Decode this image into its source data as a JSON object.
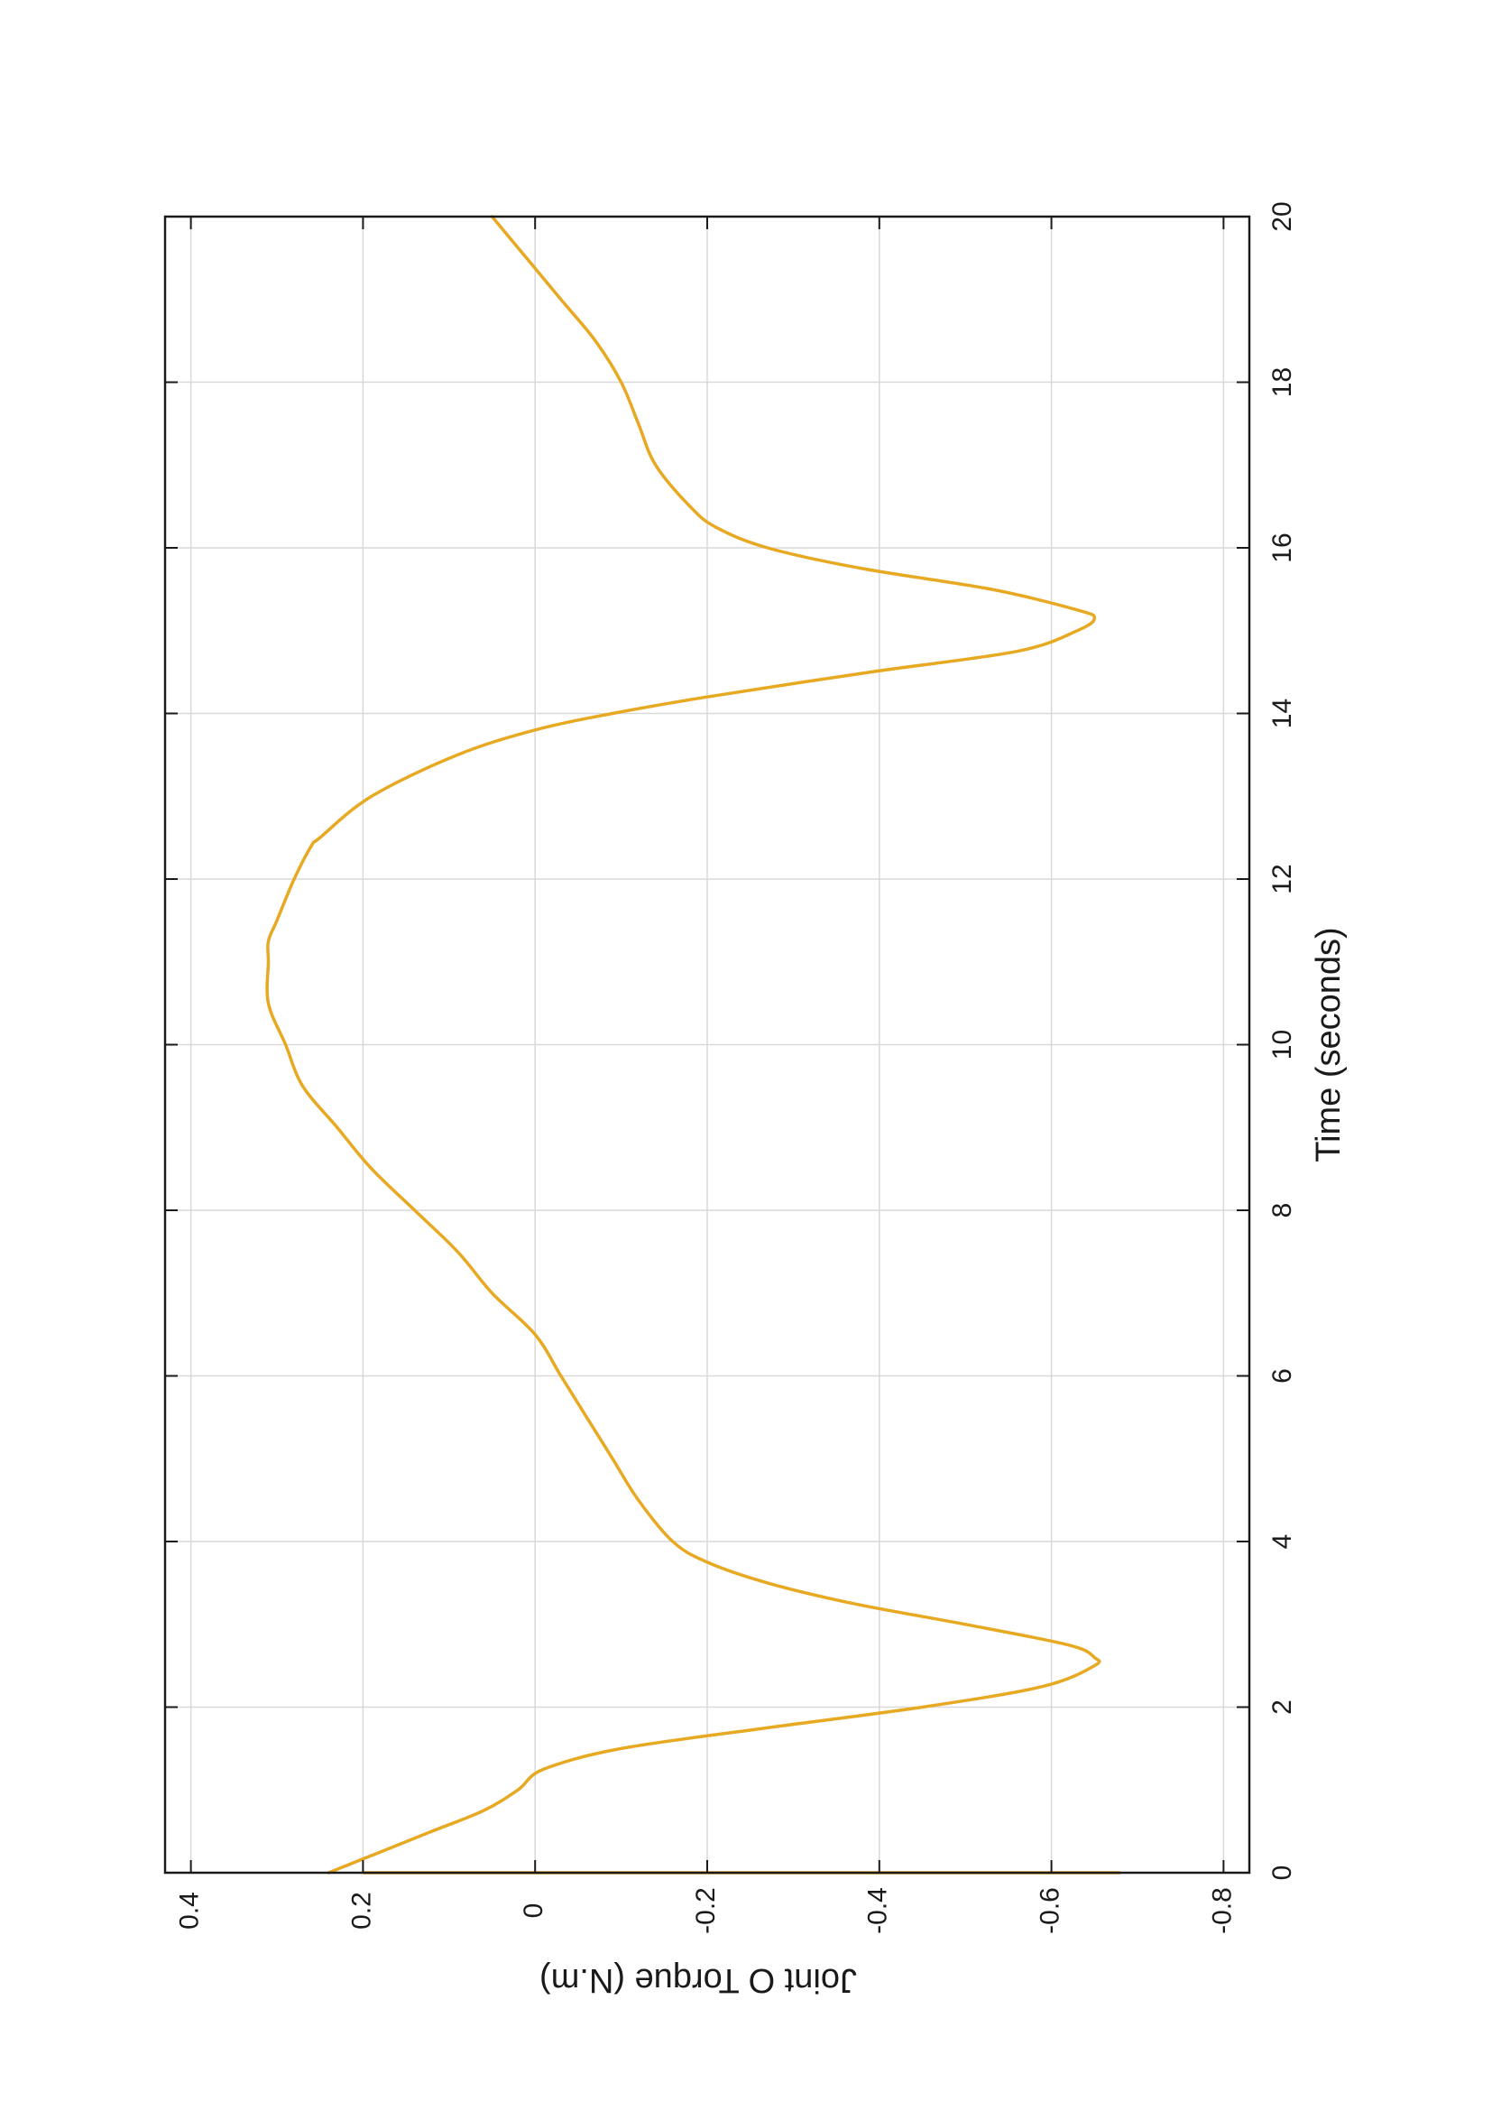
{
  "chart_data": {
    "type": "line",
    "title": "",
    "xlabel": "Time (seconds)",
    "ylabel": "Joint O Torque (N.m)",
    "xlim": [
      0,
      20
    ],
    "ylim": [
      -0.83,
      0.43
    ],
    "xticks": [
      0,
      2,
      4,
      6,
      8,
      10,
      12,
      14,
      16,
      18,
      20
    ],
    "yticks": [
      0.4,
      0.2,
      0,
      -0.2,
      -0.4,
      -0.6,
      -0.8
    ],
    "xtick_labels": [
      "0",
      "2",
      "4",
      "6",
      "8",
      "10",
      "12",
      "14",
      "16",
      "18",
      "20"
    ],
    "ytick_labels": [
      "0.4",
      "0.2",
      "0",
      "-0.2",
      "-0.4",
      "-0.6",
      "-0.8"
    ],
    "grid": true,
    "orientation": "rotated 90 degrees clockwise on the page",
    "series_color": "#E8A922",
    "series": [
      {
        "x": [
          0,
          0.25,
          0.5,
          0.75,
          1.0,
          1.25,
          1.5,
          1.75,
          2.0,
          2.25,
          2.5,
          2.6,
          2.75,
          3.0,
          3.25,
          3.5,
          3.75,
          4.0,
          4.5,
          5.0,
          5.5,
          6.0,
          6.5,
          7.0,
          7.5,
          8.0,
          8.5,
          9.0,
          9.5,
          10.0,
          10.5,
          11.0,
          11.25,
          11.5,
          12.0,
          12.4,
          12.5,
          13.0,
          13.5,
          13.8,
          14.0,
          14.2,
          14.5,
          14.75,
          15.0,
          15.15,
          15.25,
          15.5,
          15.75,
          16.0,
          16.25,
          16.5,
          17.0,
          17.5,
          18.0,
          18.5,
          19.0,
          19.5,
          20.0
        ],
        "y": [
          0.24,
          0.18,
          0.12,
          0.06,
          0.02,
          -0.01,
          -0.1,
          -0.27,
          -0.45,
          -0.59,
          -0.65,
          -0.65,
          -0.62,
          -0.5,
          -0.37,
          -0.27,
          -0.2,
          -0.16,
          -0.12,
          -0.09,
          -0.06,
          -0.03,
          0.0,
          0.05,
          0.09,
          0.14,
          0.19,
          0.23,
          0.27,
          0.29,
          0.31,
          0.31,
          0.31,
          0.3,
          0.28,
          0.26,
          0.25,
          0.19,
          0.09,
          0.0,
          -0.09,
          -0.2,
          -0.39,
          -0.56,
          -0.63,
          -0.65,
          -0.63,
          -0.53,
          -0.38,
          -0.27,
          -0.21,
          -0.18,
          -0.14,
          -0.12,
          -0.1,
          -0.07,
          -0.03,
          0.01,
          0.05
        ]
      }
    ],
    "artifact": {
      "x": [
        0,
        0
      ],
      "y": [
        0.2,
        -0.68
      ]
    }
  }
}
